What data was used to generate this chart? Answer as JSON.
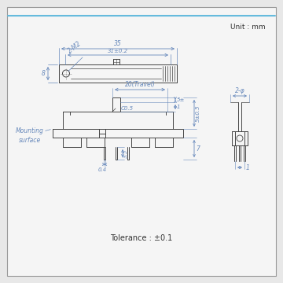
{
  "bg_color": "#e8e8e8",
  "panel_color": "#f5f5f5",
  "line_color": "#444444",
  "dim_color": "#6688bb",
  "text_color": "#333333",
  "unit_text": "Unit : mm",
  "tolerance_text": "Tolerance : ±0.1",
  "mounting_text": "Mounting\nsurface"
}
